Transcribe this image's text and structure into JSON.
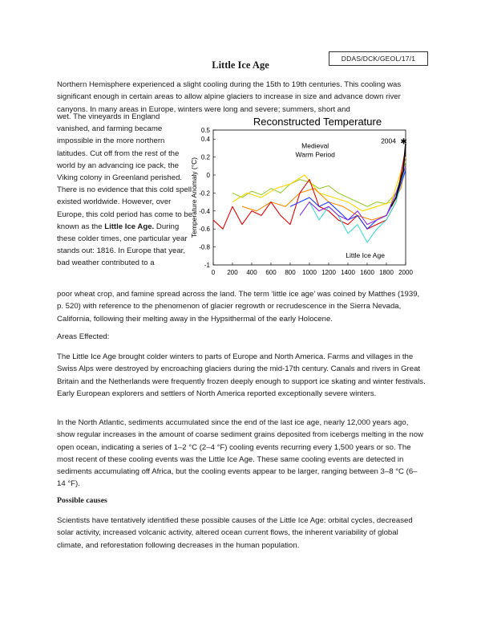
{
  "doc": {
    "code": "DDAS/DCK/GEOL/17/1",
    "title": "Little Ice Age",
    "intro": "Northern Hemisphere experienced a slight cooling during the 15th to 19th centuries. This cooling was significant enough in certain areas to allow alpine glaciers to increase in size and advance down river canyons. In many areas in Europe, winters were long and severe; summers, short and",
    "wrap_text": "wet. The vineyards in England vanished, and farming became impossible in the more northern latitudes. Cut off from the rest of the world by an advancing ice pack, the Viking colony in Greenland perished. There is no evidence that this cold spell existed worldwide. However, over Europe, this cold period has come to be known as the ",
    "wrap_bold": "Little Ice Age.",
    "wrap_after": " During these colder times, one particular year stands out: 1816. In Europe that year, bad weather contributed to a",
    "after_wrap": "poor wheat crop, and famine spread across the land. The term ‘little ice age’ was coined by Matthes (1939, p. 520) with reference to the phenomenon of glacier regrowth or recrudescence in the Sierra Nevada, California, following their melting away in the Hypsithermal of the early Holocene.",
    "areas_heading": "Areas Effected:",
    "areas_p1": "The Little Ice Age brought colder winters to parts of Europe and North America. Farms and villages in the Swiss Alps were destroyed by encroaching glaciers during the mid-17th century. Canals and rivers in Great Britain and the Netherlands were frequently frozen deeply enough to support ice skating and winter festivals. Early European explorers and settlers of North America reported exceptionally severe winters.",
    "areas_p2": "In the North Atlantic, sediments accumulated since the end of the last ice age, nearly 12,000 years ago, show regular increases in the amount of coarse sediment grains deposited from icebergs melting in the now open ocean, indicating a series of 1–2 °C (2–4 °F) cooling events recurring every 1,500 years or so. The most recent of these cooling events was the Little Ice Age. These same cooling events are detected in sediments accumulating off Africa, but the cooling events appear to be larger, ranging between 3–8 °C (6–14 °F).",
    "causes_heading": "Possible causes",
    "causes_p": "Scientists have tentatively identified these possible causes of the Little Ice Age: orbital cycles, decreased solar activity, increased volcanic activity, altered ocean current flows, the inherent variability of global climate, and reforestation following decreases in the human population."
  },
  "chart_data": {
    "type": "line",
    "title": "Reconstructed Temperature",
    "xlabel": "",
    "ylabel": "Temperature Anomaly (°C)",
    "xlim": [
      0,
      2000
    ],
    "ylim": [
      -1,
      0.5
    ],
    "x_ticks": [
      "0",
      "200",
      "400",
      "600",
      "800",
      "1000",
      "1200",
      "1400",
      "1600",
      "1800",
      "2000"
    ],
    "y_ticks": [
      "0.5",
      "0.4",
      "0.2",
      "0",
      "-0.2",
      "-0.4",
      "-0.6",
      "-0.8",
      "-1"
    ],
    "annotations": {
      "medieval": "Medieval\nWarm Period",
      "lia": "Little Ice Age",
      "year2004": "2004",
      "star": "✱"
    },
    "series": [
      {
        "color": "#9acd32",
        "x": [
          200,
          300,
          400,
          500,
          600,
          700,
          800,
          900,
          1000,
          1100,
          1200,
          1300,
          1400,
          1500,
          1600,
          1700,
          1800,
          1900,
          2000
        ],
        "y": [
          -0.2,
          -0.25,
          -0.18,
          -0.22,
          -0.15,
          -0.2,
          -0.1,
          -0.05,
          -0.08,
          -0.15,
          -0.12,
          -0.2,
          -0.25,
          -0.3,
          -0.35,
          -0.3,
          -0.32,
          -0.2,
          0.15
        ]
      },
      {
        "color": "#ffd700",
        "x": [
          200,
          350,
          500,
          650,
          800,
          950,
          1100,
          1250,
          1400,
          1550,
          1700,
          1850,
          2000
        ],
        "y": [
          -0.3,
          -0.2,
          -0.25,
          -0.15,
          -0.1,
          0.0,
          -0.2,
          -0.25,
          -0.3,
          -0.4,
          -0.35,
          -0.3,
          0.2
        ]
      },
      {
        "color": "#ff8c00",
        "x": [
          300,
          450,
          600,
          750,
          900,
          1050,
          1200,
          1350,
          1500,
          1650,
          1800,
          1950,
          2000
        ],
        "y": [
          -0.35,
          -0.4,
          -0.3,
          -0.35,
          -0.2,
          -0.15,
          -0.3,
          -0.35,
          -0.45,
          -0.5,
          -0.45,
          -0.15,
          0.1
        ]
      },
      {
        "color": "#e00000",
        "x": [
          0,
          100,
          200,
          300,
          400,
          500,
          600,
          700,
          800,
          900,
          1000,
          1100,
          1200,
          1300,
          1400,
          1500,
          1600,
          1700,
          1800,
          1900,
          2000
        ],
        "y": [
          -0.5,
          -0.6,
          -0.35,
          -0.55,
          -0.4,
          -0.45,
          -0.3,
          -0.45,
          -0.55,
          -0.2,
          -0.05,
          -0.35,
          -0.4,
          -0.5,
          -0.55,
          -0.45,
          -0.6,
          -0.55,
          -0.5,
          -0.3,
          0.3
        ]
      },
      {
        "color": "#40e0d0",
        "x": [
          1000,
          1100,
          1200,
          1300,
          1400,
          1500,
          1600,
          1700,
          1800,
          1900,
          2000
        ],
        "y": [
          -0.3,
          -0.5,
          -0.35,
          -0.45,
          -0.65,
          -0.55,
          -0.75,
          -0.6,
          -0.5,
          -0.3,
          0.1
        ]
      },
      {
        "color": "#1e3cff",
        "x": [
          800,
          900,
          1000,
          1100,
          1200,
          1300,
          1400,
          1500,
          1600,
          1700,
          1800,
          1900,
          2000
        ],
        "y": [
          -0.35,
          -0.3,
          -0.25,
          -0.35,
          -0.3,
          -0.4,
          -0.5,
          -0.45,
          -0.6,
          -0.5,
          -0.45,
          -0.25,
          0.05
        ]
      },
      {
        "color": "#8a2be2",
        "x": [
          900,
          1000,
          1100,
          1200,
          1300,
          1400,
          1500,
          1600,
          1700,
          1800,
          1900,
          2000
        ],
        "y": [
          -0.45,
          -0.3,
          -0.4,
          -0.35,
          -0.45,
          -0.5,
          -0.4,
          -0.55,
          -0.5,
          -0.45,
          -0.2,
          0.1
        ]
      },
      {
        "color": "#000000",
        "x": [
          1850,
          1875,
          1900,
          1925,
          1950,
          1975,
          2000
        ],
        "y": [
          -0.35,
          -0.3,
          -0.25,
          -0.15,
          -0.05,
          0.05,
          0.35
        ]
      }
    ]
  }
}
